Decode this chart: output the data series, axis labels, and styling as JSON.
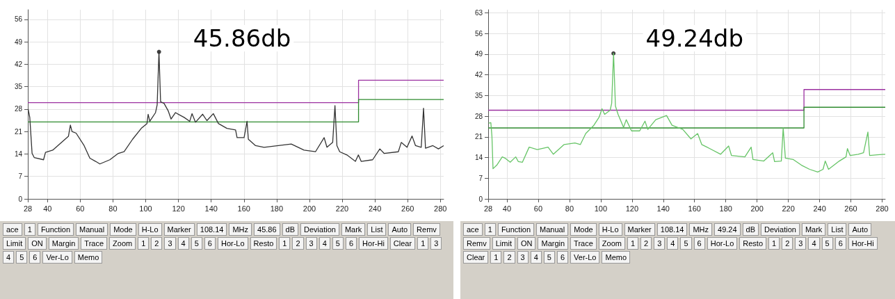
{
  "chart_data": [
    {
      "type": "line",
      "xlim": [
        28,
        282
      ],
      "xticks": [
        28,
        40,
        60,
        80,
        100,
        120,
        140,
        160,
        180,
        200,
        220,
        240,
        260,
        280
      ],
      "ylim": [
        0,
        59
      ],
      "yticks": [
        0,
        7,
        14,
        21,
        28,
        35,
        42,
        49,
        56
      ],
      "grid": true,
      "series": [
        {
          "color": "#9b30a0",
          "x": [
            28,
            230,
            230,
            282
          ],
          "values": [
            30,
            30,
            37,
            37
          ]
        },
        {
          "color": "#2e8b2e",
          "x": [
            28,
            230,
            230,
            282
          ],
          "values": [
            24,
            24,
            31,
            31
          ]
        },
        {
          "color": "#333333",
          "x": [
            28.2,
            29.2,
            30.6,
            31.9,
            37.6,
            38.8,
            43.2,
            52.8,
            54,
            55,
            57.5,
            62.4,
            65.9,
            69.4,
            72,
            78.1,
            83.3,
            86.8,
            92,
            97.3,
            100.8,
            101.5,
            102.5,
            106,
            107,
            108.1,
            109.1,
            111.2,
            113.8,
            115.5,
            118.2,
            123.5,
            126.9,
            128.3,
            130.4,
            134.8,
            137.4,
            141.3,
            144.4,
            149.6,
            154.9,
            155.8,
            160.1,
            161.9,
            162.7,
            167.1,
            172.3,
            181,
            188.9,
            196.7,
            203.7,
            209,
            210.7,
            214.2,
            215.6,
            216.8,
            218.5,
            222.9,
            228.1,
            229.9,
            231.6,
            238.6,
            243,
            245.6,
            254.3,
            256.1,
            259.6,
            262.7,
            264.8,
            268.3,
            269.7,
            270.9,
            275.4,
            278.8,
            282
          ],
          "values": [
            28,
            25.4,
            14.2,
            12.9,
            12.2,
            14.5,
            15.2,
            19.5,
            23,
            21,
            20.5,
            16.6,
            12.7,
            11.7,
            10.9,
            12.2,
            14.2,
            14.7,
            18.6,
            22,
            23.5,
            26.4,
            24.2,
            26.9,
            29.3,
            45.9,
            30.3,
            29.8,
            27.4,
            24.9,
            26.9,
            25.4,
            24.2,
            26.6,
            23.9,
            26.4,
            24.4,
            26.6,
            23.5,
            22,
            21.5,
            19.1,
            19.1,
            24.2,
            18.6,
            16.6,
            16.1,
            16.6,
            17.1,
            15.2,
            14.7,
            19.1,
            16.1,
            17.6,
            29.1,
            16.6,
            14.7,
            13.7,
            11.7,
            13.7,
            11.7,
            12.2,
            15.6,
            14.2,
            14.7,
            17.6,
            16.1,
            19.6,
            16.6,
            16.1,
            28.3,
            15.8,
            16.6,
            15.6,
            16.6
          ]
        },
        {
          "type": "scatter",
          "color": "#111111",
          "x": [
            108.14
          ],
          "values": [
            45.86
          ]
        }
      ],
      "annotations": [
        "45.86db",
        "ace",
        "1",
        "Function",
        "Manual",
        "Mode",
        "H-Lo",
        "Marker",
        "108.14",
        "MHz",
        "45.86",
        "dB",
        "Deviation",
        "Mark",
        "List",
        "Auto",
        "Remv",
        "Limit",
        "ON",
        "Margin",
        "Trace",
        "Zoom",
        "1",
        "2",
        "3",
        "4",
        "5",
        "6",
        "Hor-Lo",
        "Resto",
        "1",
        "2",
        "3",
        "4",
        "5",
        "6",
        "Hor-Hi",
        "Clear",
        "1",
        "3",
        "4",
        "5",
        "6",
        "Ver-Lo",
        "Memo"
      ]
    },
    {
      "type": "line",
      "xlim": [
        28,
        282
      ],
      "xticks": [
        28,
        40,
        60,
        80,
        100,
        120,
        140,
        160,
        180,
        200,
        220,
        240,
        260,
        280
      ],
      "ylim": [
        0,
        64
      ],
      "yticks": [
        0,
        7,
        14,
        21,
        28,
        35,
        42,
        49,
        56,
        63
      ],
      "grid": true,
      "series": [
        {
          "color": "#9b30a0",
          "x": [
            28,
            230,
            230,
            282
          ],
          "values": [
            30,
            30,
            37,
            37
          ]
        },
        {
          "color": "#2e8b2e",
          "x": [
            28,
            230,
            230,
            282
          ],
          "values": [
            24,
            24,
            31,
            31
          ]
        },
        {
          "color": "#66c466",
          "x": [
            28.3,
            29.7,
            30.4,
            31.1,
            33.5,
            37,
            38.7,
            42.1,
            45.6,
            47.3,
            49.9,
            54.2,
            59.4,
            66.3,
            69.7,
            76.6,
            83.5,
            87,
            90.4,
            95.6,
            99,
            100.8,
            102.5,
            106,
            107,
            108.2,
            109.4,
            111.1,
            114.6,
            116.3,
            119.7,
            124.9,
            128.3,
            130.1,
            135.2,
            142.1,
            145.6,
            152.5,
            157.7,
            162,
            164.6,
            169.8,
            176.7,
            181.8,
            183.6,
            192.2,
            196.2,
            197.4,
            204.3,
            210,
            211.2,
            215.5,
            216.7,
            218.1,
            223.2,
            228.4,
            233.6,
            238.8,
            242.2,
            243.6,
            245.7,
            252.6,
            256.9,
            257.8,
            259.5,
            264.7,
            268.1,
            270.9,
            272,
            276.8,
            282
          ],
          "values": [
            25.6,
            25.8,
            21.2,
            10.2,
            11.4,
            14.2,
            13.8,
            12.4,
            14.2,
            12.6,
            12.4,
            17.5,
            16.7,
            17.5,
            15.1,
            18.4,
            18.9,
            18.4,
            22.1,
            24.9,
            27.7,
            30.5,
            28.6,
            30,
            32.3,
            49.3,
            31.4,
            28.6,
            24.2,
            26.8,
            23,
            23,
            26.3,
            23.5,
            26.8,
            28.2,
            24.9,
            23.5,
            20.3,
            22.1,
            18.4,
            17,
            15.1,
            17.9,
            14.7,
            14.2,
            17.5,
            13.3,
            12.8,
            15.6,
            12.6,
            12.8,
            24,
            13.8,
            13.3,
            11.4,
            10,
            9.1,
            10,
            12.8,
            10,
            12.8,
            14.2,
            17,
            14.7,
            15.1,
            15.6,
            22.6,
            14.7,
            14.9,
            15.1
          ]
        },
        {
          "type": "scatter",
          "color": "#111111",
          "x": [
            108.14
          ],
          "values": [
            49.24
          ]
        }
      ],
      "annotations": [
        "49.24db",
        "ace",
        "1",
        "Function",
        "Manual",
        "Mode",
        "H-Lo",
        "Marker",
        "108.14",
        "MHz",
        "49.24",
        "dB",
        "Deviation",
        "Mark",
        "List",
        "Auto",
        "Remv",
        "Limit",
        "ON",
        "Margin",
        "Trace",
        "Zoom",
        "1",
        "2",
        "3",
        "4",
        "5",
        "6",
        "Hor-Lo",
        "Resto",
        "1",
        "2",
        "3",
        "4",
        "5",
        "6",
        "Hor-Hi",
        "Clear",
        "1",
        "2",
        "3",
        "4",
        "5",
        "6",
        "Ver-Lo",
        "Memo"
      ]
    }
  ]
}
